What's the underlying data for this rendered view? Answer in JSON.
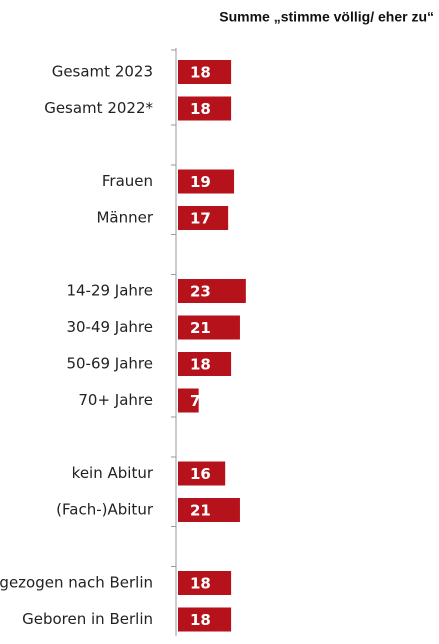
{
  "chart_data": {
    "type": "barh",
    "title": "Summe „stimme völlig/ eher zu“",
    "categories": [
      "Gesamt 2023",
      "Gesamt 2022*",
      null,
      "Frauen",
      "Männer",
      null,
      "14-29 Jahre",
      "30-49 Jahre",
      "50-69 Jahre",
      "70+ Jahre",
      null,
      "kein Abitur",
      "(Fach-)Abitur",
      null,
      "Zugezogen nach Berlin",
      "Geboren in Berlin"
    ],
    "values": [
      18,
      18,
      null,
      19,
      17,
      null,
      23,
      21,
      18,
      7,
      null,
      16,
      21,
      null,
      18,
      18
    ],
    "color": "#b5121b"
  }
}
